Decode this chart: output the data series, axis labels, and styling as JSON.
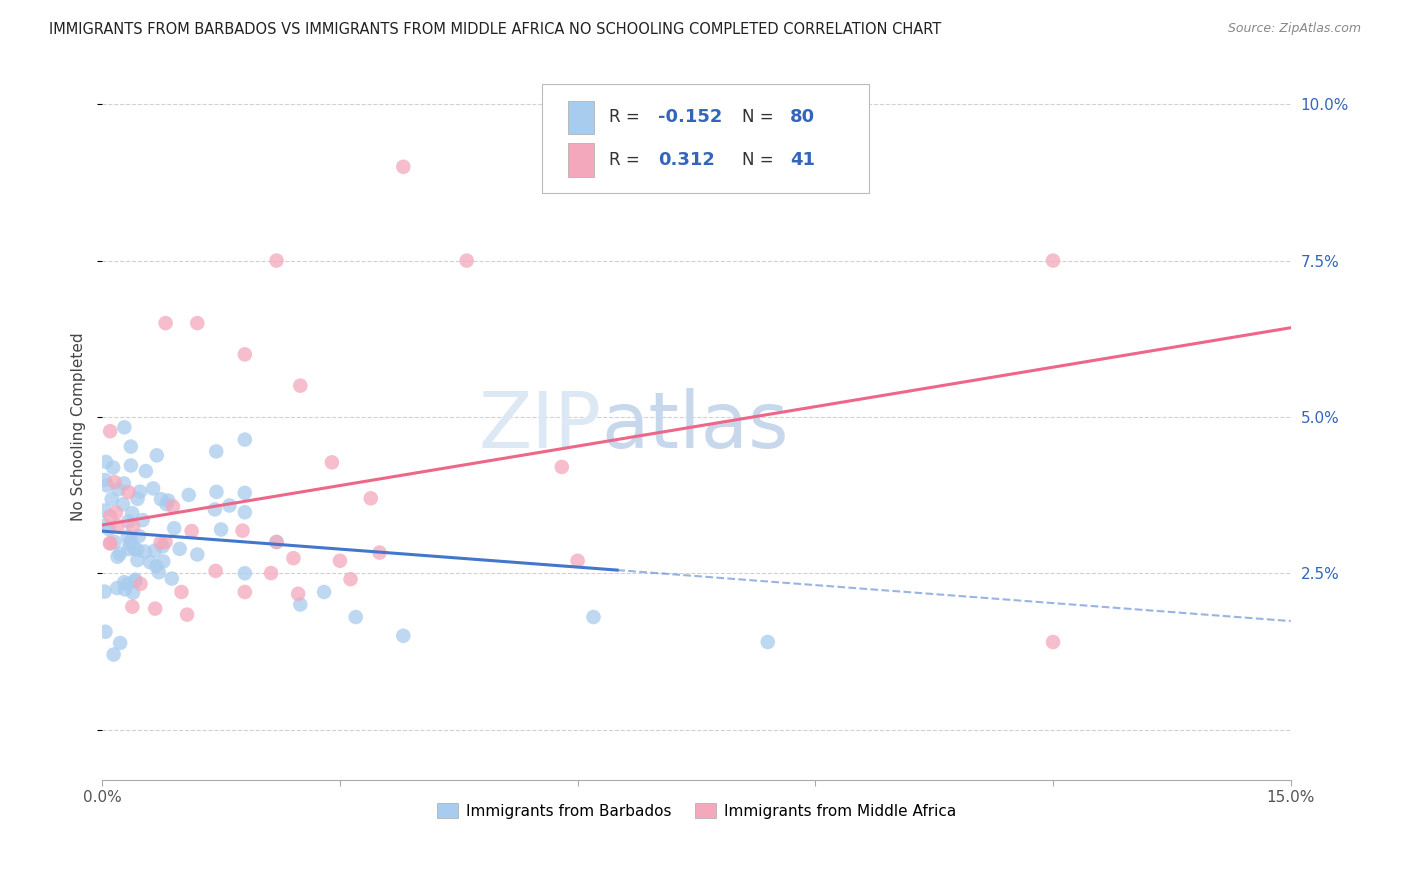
{
  "title": "IMMIGRANTS FROM BARBADOS VS IMMIGRANTS FROM MIDDLE AFRICA NO SCHOOLING COMPLETED CORRELATION CHART",
  "source": "Source: ZipAtlas.com",
  "ylabel": "No Schooling Completed",
  "xlim": [
    0.0,
    0.15
  ],
  "ylim": [
    -0.008,
    0.105
  ],
  "blue_color": "#A8CCEE",
  "pink_color": "#F4A8BC",
  "blue_line_color": "#4477CC",
  "pink_line_color": "#EE6688",
  "blue_line_dash_color": "#88AADE",
  "watermark_color": "#DCE8F4",
  "r_value_color": "#3366BB",
  "legend_text_color": "#333333",
  "grid_color": "#CCCCCC",
  "tick_label_color_right": "#3366BB",
  "tick_label_color_x": "#555555"
}
